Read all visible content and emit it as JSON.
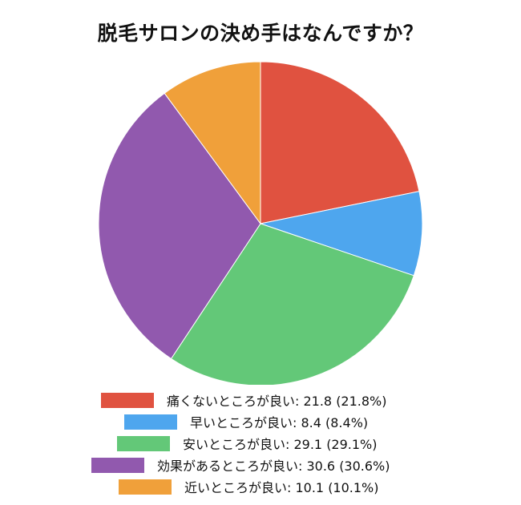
{
  "title": "脱毛サロンの決め手はなんですか？",
  "chart_data": {
    "type": "pie",
    "title": "脱毛サロンの決め手はなんですか？",
    "slices": [
      {
        "label": "痛くないところが良い",
        "value": 21.8,
        "percent": "21.8%",
        "color": "#e05240"
      },
      {
        "label": "早いところが良い",
        "value": 8.4,
        "percent": "8.4%",
        "color": "#4ea6ee"
      },
      {
        "label": "安いところが良い",
        "value": 29.1,
        "percent": "29.1%",
        "color": "#63c878"
      },
      {
        "label": "効果があるところが良い",
        "value": 30.6,
        "percent": "30.6%",
        "color": "#9159ae"
      },
      {
        "label": "近いところが良い",
        "value": 10.1,
        "percent": "10.1%",
        "color": "#f0a03a"
      }
    ],
    "legend_position": "bottom"
  },
  "legend": [
    "痛くないところが良い: 21.8 (21.8%)",
    "早いところが良い: 8.4 (8.4%)",
    "安いところが良い: 29.1 (29.1%)",
    "効果があるところが良い: 30.6 (30.6%)",
    "近いところが良い: 10.1 (10.1%)"
  ]
}
